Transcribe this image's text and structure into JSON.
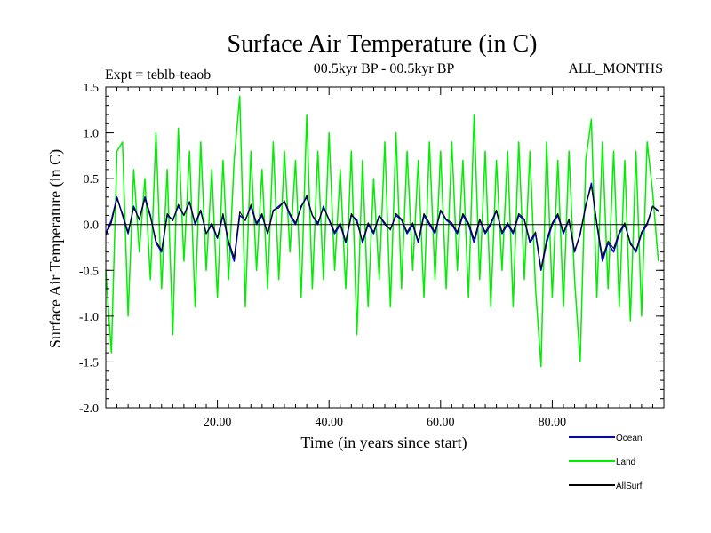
{
  "chart_data": {
    "type": "line",
    "title": "Surface Air Temperature (in C)",
    "subtitle_left": "Expt = teblb-teaob",
    "subtitle_center": "00.5kyr BP - 00.5kyr BP",
    "subtitle_right": "ALL_MONTHS",
    "xlabel": "Time (in years since start)",
    "ylabel": "Surface Air Temperature (in C)",
    "xlim": [
      0,
      100
    ],
    "ylim": [
      -2.0,
      1.5
    ],
    "x_ticks": [
      20,
      40,
      60,
      80
    ],
    "x_tick_labels": [
      "20.00",
      "40.00",
      "60.00",
      "80.00"
    ],
    "y_ticks": [
      1.5,
      1.0,
      0.5,
      0.0,
      -0.5,
      -1.0,
      -1.5,
      -2.0
    ],
    "y_tick_labels": [
      "1.5",
      "1.0",
      "0.5",
      "0.0",
      "-0.5",
      "-1.0",
      "-1.5",
      "-2.0"
    ],
    "legend_position": "bottom-right",
    "series": [
      {
        "name": "Land",
        "color": "#00ee00",
        "x": [
          0,
          1,
          2,
          3,
          4,
          5,
          6,
          7,
          8,
          9,
          10,
          11,
          12,
          13,
          14,
          15,
          16,
          17,
          18,
          19,
          20,
          21,
          22,
          23,
          24,
          25,
          26,
          27,
          28,
          29,
          30,
          31,
          32,
          33,
          34,
          35,
          36,
          37,
          38,
          39,
          40,
          41,
          42,
          43,
          44,
          45,
          46,
          47,
          48,
          49,
          50,
          51,
          52,
          53,
          54,
          55,
          56,
          57,
          58,
          59,
          60,
          61,
          62,
          63,
          64,
          65,
          66,
          67,
          68,
          69,
          70,
          71,
          72,
          73,
          74,
          75,
          76,
          77,
          78,
          79,
          80,
          81,
          82,
          83,
          84,
          85,
          86,
          87,
          88,
          89,
          90,
          91,
          92,
          93,
          94,
          95,
          96,
          97,
          98,
          99
        ],
        "values": [
          -0.5,
          -1.4,
          0.8,
          0.9,
          -1.0,
          0.6,
          -0.3,
          0.5,
          -0.6,
          1.0,
          -0.7,
          0.6,
          -1.2,
          1.05,
          -0.4,
          0.8,
          -0.9,
          0.9,
          -0.5,
          0.6,
          -0.8,
          0.7,
          -0.6,
          0.7,
          1.4,
          -0.9,
          0.8,
          -0.5,
          0.6,
          -0.7,
          0.9,
          -0.6,
          0.8,
          -0.3,
          0.7,
          -0.8,
          1.2,
          -0.7,
          0.8,
          -0.6,
          1.0,
          -0.5,
          0.6,
          -0.7,
          0.8,
          -1.2,
          0.7,
          -0.9,
          0.5,
          -0.6,
          0.9,
          -0.9,
          1.0,
          -0.7,
          0.8,
          -0.5,
          0.7,
          -0.8,
          0.9,
          -0.6,
          0.8,
          -0.7,
          0.9,
          -0.5,
          0.7,
          -0.8,
          1.2,
          -0.6,
          0.8,
          -0.9,
          0.7,
          -0.5,
          0.8,
          -0.9,
          0.9,
          -0.6,
          0.8,
          -0.7,
          -1.55,
          0.9,
          -0.8,
          0.7,
          -0.9,
          0.8,
          -0.6,
          -1.5,
          0.7,
          1.15,
          -0.8,
          0.9,
          -0.7,
          0.8,
          -0.9,
          0.7,
          -1.05,
          0.8,
          -1.0,
          0.9,
          0.35,
          -0.4
        ]
      },
      {
        "name": "Ocean",
        "color": "#0000dd",
        "x": [
          0,
          1,
          2,
          3,
          4,
          5,
          6,
          7,
          8,
          9,
          10,
          11,
          12,
          13,
          14,
          15,
          16,
          17,
          18,
          19,
          20,
          21,
          22,
          23,
          24,
          25,
          26,
          27,
          28,
          29,
          30,
          31,
          32,
          33,
          34,
          35,
          36,
          37,
          38,
          39,
          40,
          41,
          42,
          43,
          44,
          45,
          46,
          47,
          48,
          49,
          50,
          51,
          52,
          53,
          54,
          55,
          56,
          57,
          58,
          59,
          60,
          61,
          62,
          63,
          64,
          65,
          66,
          67,
          68,
          69,
          70,
          71,
          72,
          73,
          74,
          75,
          76,
          77,
          78,
          79,
          80,
          81,
          82,
          83,
          84,
          85,
          86,
          87,
          88,
          89,
          90,
          91,
          92,
          93,
          94,
          95,
          96,
          97,
          98,
          99
        ],
        "values": [
          -0.1,
          0.05,
          0.3,
          0.1,
          -0.1,
          0.2,
          0.05,
          0.3,
          0.1,
          -0.2,
          -0.3,
          0.1,
          0.05,
          0.2,
          0.1,
          0.25,
          0.0,
          0.15,
          -0.1,
          0.0,
          -0.15,
          0.1,
          -0.2,
          -0.4,
          0.1,
          0.05,
          0.2,
          0.0,
          0.1,
          -0.1,
          0.15,
          0.2,
          0.25,
          0.1,
          0.0,
          0.2,
          0.3,
          0.1,
          0.0,
          0.2,
          0.05,
          -0.1,
          0.0,
          -0.2,
          0.1,
          0.05,
          -0.2,
          0.0,
          -0.1,
          0.1,
          0.0,
          -0.05,
          0.1,
          0.05,
          -0.1,
          0.0,
          -0.2,
          0.1,
          0.0,
          -0.1,
          0.15,
          0.05,
          0.0,
          -0.1,
          0.1,
          0.0,
          -0.2,
          0.05,
          -0.1,
          0.0,
          0.15,
          -0.1,
          0.0,
          -0.1,
          0.1,
          0.05,
          -0.2,
          -0.1,
          -0.5,
          -0.2,
          0.0,
          0.1,
          -0.1,
          0.05,
          -0.3,
          -0.1,
          0.2,
          0.45,
          0.0,
          -0.4,
          -0.2,
          -0.3,
          -0.1,
          0.0,
          -0.2,
          -0.3,
          -0.1,
          0.0,
          0.2,
          0.15
        ]
      },
      {
        "name": "AllSurf",
        "color": "#000000",
        "x": [
          0,
          1,
          2,
          3,
          4,
          5,
          6,
          7,
          8,
          9,
          10,
          11,
          12,
          13,
          14,
          15,
          16,
          17,
          18,
          19,
          20,
          21,
          22,
          23,
          24,
          25,
          26,
          27,
          28,
          29,
          30,
          31,
          32,
          33,
          34,
          35,
          36,
          37,
          38,
          39,
          40,
          41,
          42,
          43,
          44,
          45,
          46,
          47,
          48,
          49,
          50,
          51,
          52,
          53,
          54,
          55,
          56,
          57,
          58,
          59,
          60,
          61,
          62,
          63,
          64,
          65,
          66,
          67,
          68,
          69,
          70,
          71,
          72,
          73,
          74,
          75,
          76,
          77,
          78,
          79,
          80,
          81,
          82,
          83,
          84,
          85,
          86,
          87,
          88,
          89,
          90,
          91,
          92,
          93,
          94,
          95,
          96,
          97,
          98,
          99
        ],
        "values": [
          -0.12,
          0.02,
          0.28,
          0.12,
          -0.08,
          0.18,
          0.06,
          0.28,
          0.08,
          -0.18,
          -0.28,
          0.12,
          0.04,
          0.22,
          0.1,
          0.24,
          0.02,
          0.16,
          -0.1,
          0.02,
          -0.14,
          0.12,
          -0.18,
          -0.36,
          0.14,
          0.04,
          0.22,
          0.02,
          0.12,
          -0.1,
          0.16,
          0.18,
          0.26,
          0.12,
          0.02,
          0.18,
          0.32,
          0.1,
          0.02,
          0.18,
          0.06,
          -0.08,
          0.02,
          -0.18,
          0.12,
          0.02,
          -0.18,
          0.02,
          -0.08,
          0.1,
          0.02,
          -0.06,
          0.12,
          0.06,
          -0.08,
          0.02,
          -0.18,
          0.12,
          0.02,
          -0.08,
          0.16,
          0.06,
          0.02,
          -0.08,
          0.12,
          0.02,
          -0.16,
          0.06,
          -0.08,
          0.02,
          0.16,
          -0.08,
          0.02,
          -0.08,
          0.12,
          0.06,
          -0.18,
          -0.08,
          -0.48,
          -0.16,
          0.02,
          0.12,
          -0.08,
          0.06,
          -0.28,
          -0.12,
          0.22,
          0.42,
          0.02,
          -0.36,
          -0.18,
          -0.26,
          -0.08,
          0.02,
          -0.22,
          -0.28,
          -0.08,
          0.02,
          0.2,
          0.14
        ]
      }
    ],
    "legend_entries": [
      "Ocean",
      "Land",
      "AllSurf"
    ],
    "legend_colors": [
      "#0000dd",
      "#00ee00",
      "#000000"
    ]
  }
}
